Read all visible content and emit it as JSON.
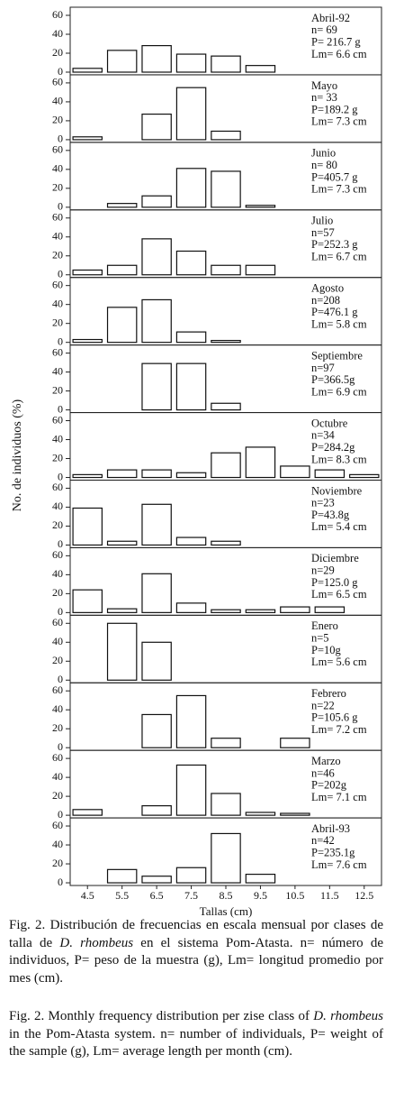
{
  "ylabel": "No. de individuos (%)",
  "caption_es": [
    "Fig. 2. Distribución de frecuencias en escala mensual por clases de talla de ",
    "D. rhombeus",
    " en el sistema Pom-Atasta. n= número de individuos, P= peso de la muestra (g), Lm= longitud promedio por mes (cm)."
  ],
  "caption_en": [
    "Fig. 2. Monthly frequency distribution per zise class of ",
    "D. rhombeus",
    " in the Pom-Atasta system. n= number of individuals, P= weight of the sample (g), Lm= average length per month (cm)."
  ],
  "chart_data": [
    {
      "type": "bar",
      "annotations": [
        "Abril-92",
        "n= 69",
        "P= 216.7 g",
        "Lm= 6.6 cm"
      ],
      "values": [
        4,
        23,
        28,
        19,
        17,
        7,
        0,
        0,
        0
      ],
      "ylim": [
        0,
        60
      ],
      "yticks": [
        0,
        20,
        40,
        60
      ]
    },
    {
      "type": "bar",
      "annotations": [
        "Mayo",
        "n= 33",
        "P=189.2 g",
        "Lm= 7.3 cm"
      ],
      "values": [
        3,
        0,
        27,
        55,
        9,
        0,
        0,
        0,
        0
      ],
      "ylim": [
        0,
        60
      ],
      "yticks": [
        0,
        20,
        40,
        60
      ]
    },
    {
      "type": "bar",
      "annotations": [
        "Junio",
        "n= 80",
        "P=405.7 g",
        "Lm= 7.3 cm"
      ],
      "values": [
        0,
        4,
        12,
        41,
        38,
        2,
        0,
        0,
        0
      ],
      "ylim": [
        0,
        60
      ],
      "yticks": [
        0,
        20,
        40,
        60
      ]
    },
    {
      "type": "bar",
      "annotations": [
        "Julio",
        "n=57",
        "P=252.3 g",
        "Lm= 6.7 cm"
      ],
      "values": [
        5,
        10,
        38,
        25,
        10,
        10,
        0,
        0,
        0
      ],
      "ylim": [
        0,
        60
      ],
      "yticks": [
        0,
        20,
        40,
        60
      ]
    },
    {
      "type": "bar",
      "annotations": [
        "Agosto",
        "n=208",
        "P=476.1 g",
        "Lm= 5.8 cm"
      ],
      "values": [
        3,
        37,
        45,
        11,
        2,
        0,
        0,
        0,
        0
      ],
      "ylim": [
        0,
        60
      ],
      "yticks": [
        0,
        20,
        40,
        60
      ]
    },
    {
      "type": "bar",
      "annotations": [
        "Septiembre",
        "n=97",
        "P=366.5g",
        "Lm= 6.9 cm"
      ],
      "values": [
        0,
        0,
        49,
        49,
        7,
        0,
        0,
        0,
        0
      ],
      "ylim": [
        0,
        60
      ],
      "yticks": [
        0,
        20,
        40,
        60
      ]
    },
    {
      "type": "bar",
      "annotations": [
        "Octubre",
        "n=34",
        "P=284.2g",
        "Lm= 8.3 cm"
      ],
      "values": [
        3,
        8,
        8,
        5,
        26,
        32,
        12,
        8,
        3
      ],
      "ylim": [
        0,
        60
      ],
      "yticks": [
        0,
        20,
        40,
        60
      ]
    },
    {
      "type": "bar",
      "annotations": [
        "Noviembre",
        "n=23",
        "P=43.8g",
        "Lm= 5.4 cm"
      ],
      "values": [
        39,
        4,
        43,
        8,
        4,
        0,
        0,
        0,
        0
      ],
      "ylim": [
        0,
        60
      ],
      "yticks": [
        0,
        20,
        40,
        60
      ]
    },
    {
      "type": "bar",
      "annotations": [
        "Diciembre",
        "n=29",
        "P=125.0 g",
        "Lm= 6.5 cm"
      ],
      "values": [
        24,
        4,
        41,
        10,
        3,
        3,
        6,
        6,
        0
      ],
      "ylim": [
        0,
        60
      ],
      "yticks": [
        0,
        20,
        40,
        60
      ]
    },
    {
      "type": "bar",
      "annotations": [
        "Enero",
        "n=5",
        "P=10g",
        "Lm= 5.6 cm"
      ],
      "values": [
        0,
        60,
        40,
        0,
        0,
        0,
        0,
        0,
        0
      ],
      "ylim": [
        0,
        60
      ],
      "yticks": [
        0,
        20,
        40,
        60
      ]
    },
    {
      "type": "bar",
      "annotations": [
        "Febrero",
        "n=22",
        "P=105.6 g",
        "Lm= 7.2 cm"
      ],
      "values": [
        0,
        0,
        35,
        55,
        10,
        0,
        10,
        0,
        0
      ],
      "ylim": [
        0,
        60
      ],
      "yticks": [
        0,
        20,
        40,
        60
      ]
    },
    {
      "type": "bar",
      "annotations": [
        "Marzo",
        "n=46",
        "P=202g",
        "Lm= 7.1 cm"
      ],
      "values": [
        6,
        0,
        10,
        53,
        23,
        3,
        2,
        0,
        0
      ],
      "ylim": [
        0,
        60
      ],
      "yticks": [
        0,
        20,
        40,
        60
      ]
    },
    {
      "type": "bar",
      "annotations": [
        "Abril-93",
        "n=42",
        "P=235.1g",
        "Lm= 7.6 cm"
      ],
      "values": [
        0,
        14,
        7,
        16,
        52,
        9,
        0,
        0,
        0
      ],
      "ylim": [
        0,
        60
      ],
      "yticks": [
        0,
        20,
        40,
        60
      ],
      "categories": [
        "4.5",
        "5.5",
        "6.5",
        "7.5",
        "8.5",
        "9.5",
        "10.5",
        "11.5",
        "12.5"
      ],
      "xlabel": "Tallas (cm)"
    }
  ]
}
